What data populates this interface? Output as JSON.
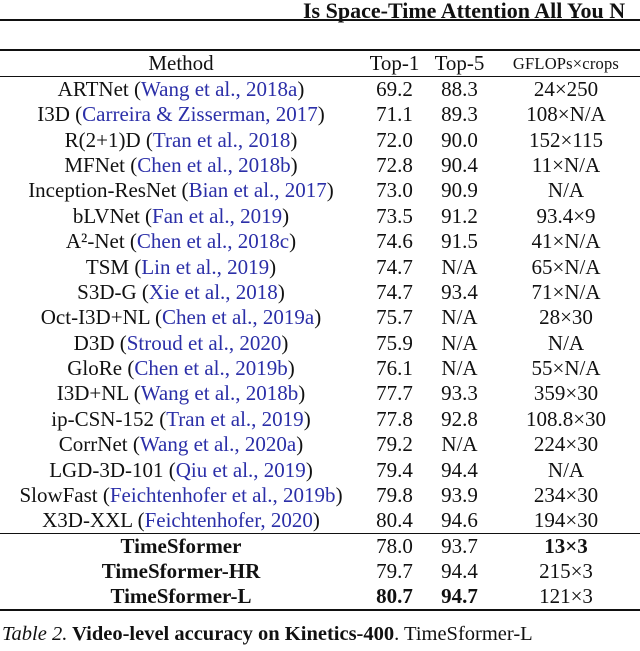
{
  "page_header": {
    "title": "Is Space-Time Attention All You N"
  },
  "colors": {
    "citation_blue": "#2b2fa8",
    "text": "#111111"
  },
  "table": {
    "header": {
      "method": "Method",
      "top1": "Top-1",
      "top5": "Top-5",
      "gflops": "GFLOPs×crops"
    },
    "rows": [
      {
        "pre": "ARTNet (",
        "cite": "Wang et al., 2018a",
        "post": ")",
        "top1": "69.2",
        "top5": "88.3",
        "gflops": "24×250"
      },
      {
        "pre": "I3D (",
        "cite": "Carreira & Zisserman, 2017",
        "post": ")",
        "top1": "71.1",
        "top5": "89.3",
        "gflops": "108×N/A"
      },
      {
        "pre": "R(2+1)D (",
        "cite": "Tran et al., 2018",
        "post": ")",
        "top1": "72.0",
        "top5": "90.0",
        "gflops": "152×115"
      },
      {
        "pre": "MFNet (",
        "cite": "Chen et al., 2018b",
        "post": ")",
        "top1": "72.8",
        "top5": "90.4",
        "gflops": "11×N/A"
      },
      {
        "pre": "Inception-ResNet (",
        "cite": "Bian et al., 2017",
        "post": ")",
        "top1": "73.0",
        "top5": "90.9",
        "gflops": "N/A"
      },
      {
        "pre": "bLVNet (",
        "cite": "Fan et al., 2019",
        "post": ")",
        "top1": "73.5",
        "top5": "91.2",
        "gflops": "93.4×9"
      },
      {
        "pre": "A²-Net (",
        "cite": "Chen et al., 2018c",
        "post": ")",
        "top1": "74.6",
        "top5": "91.5",
        "gflops": "41×N/A"
      },
      {
        "pre": "TSM (",
        "cite": "Lin et al., 2019",
        "post": ")",
        "top1": "74.7",
        "top5": "N/A",
        "gflops": "65×N/A"
      },
      {
        "pre": "S3D-G (",
        "cite": "Xie et al., 2018",
        "post": ")",
        "top1": "74.7",
        "top5": "93.4",
        "gflops": "71×N/A"
      },
      {
        "pre": "Oct-I3D+NL (",
        "cite": "Chen et al., 2019a",
        "post": ")",
        "top1": "75.7",
        "top5": "N/A",
        "gflops": "28×30"
      },
      {
        "pre": "D3D (",
        "cite": "Stroud et al., 2020",
        "post": ")",
        "top1": "75.9",
        "top5": "N/A",
        "gflops": "N/A"
      },
      {
        "pre": "GloRe (",
        "cite": "Chen et al., 2019b",
        "post": ")",
        "top1": "76.1",
        "top5": "N/A",
        "gflops": "55×N/A"
      },
      {
        "pre": "I3D+NL (",
        "cite": "Wang et al., 2018b",
        "post": ")",
        "top1": "77.7",
        "top5": "93.3",
        "gflops": "359×30"
      },
      {
        "pre": "ip-CSN-152 (",
        "cite": "Tran et al., 2019",
        "post": ")",
        "top1": "77.8",
        "top5": "92.8",
        "gflops": "108.8×30"
      },
      {
        "pre": "CorrNet (",
        "cite": "Wang et al., 2020a",
        "post": ")",
        "top1": "79.2",
        "top5": "N/A",
        "gflops": "224×30"
      },
      {
        "pre": "LGD-3D-101 (",
        "cite": "Qiu et al., 2019",
        "post": ")",
        "top1": "79.4",
        "top5": "94.4",
        "gflops": "N/A"
      },
      {
        "pre": "SlowFast (",
        "cite": "Feichtenhofer et al., 2019b",
        "post": ")",
        "top1": "79.8",
        "top5": "93.9",
        "gflops": "234×30"
      },
      {
        "pre": "X3D-XXL (",
        "cite": "Feichtenhofer, 2020",
        "post": ")",
        "top1": "80.4",
        "top5": "94.6",
        "gflops": "194×30"
      }
    ],
    "highlight_rows": [
      {
        "method": "TimeSformer",
        "top1": "78.0",
        "top5": "93.7",
        "gflops": "13×3",
        "top1_bold": false,
        "top5_bold": false,
        "gflops_bold": true
      },
      {
        "method": "TimeSformer-HR",
        "top1": "79.7",
        "top5": "94.4",
        "gflops": "215×3",
        "top1_bold": false,
        "top5_bold": false,
        "gflops_bold": false
      },
      {
        "method": "TimeSformer-L",
        "top1": "80.7",
        "top5": "94.7",
        "gflops": "121×3",
        "top1_bold": true,
        "top5_bold": true,
        "gflops_bold": false
      }
    ]
  },
  "caption": {
    "label": "Table 2.",
    "title": " Video-level accuracy on Kinetics-400",
    "rest": ". TimeSformer-L"
  }
}
